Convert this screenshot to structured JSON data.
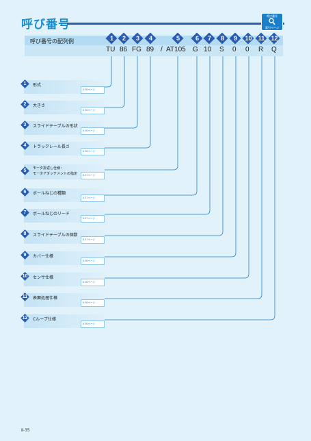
{
  "header": {
    "title": "呼び番号",
    "index_badge_top": "呼び番号",
    "index_badge_bottom": "索引ページ"
  },
  "config": {
    "label": "呼び番号の配列例",
    "numbers": [
      "1",
      "2",
      "3",
      "4",
      "5",
      "6",
      "7",
      "8",
      "9",
      "10",
      "11",
      "12"
    ],
    "codes": [
      "TU",
      "86",
      "FG",
      "89",
      "/",
      "AT105",
      "G",
      "10",
      "S",
      "0",
      "0",
      "R",
      "Q"
    ]
  },
  "items": [
    {
      "num": "1",
      "label": "形式",
      "ref": "Ⅱ-36ページ"
    },
    {
      "num": "2",
      "label": "大きさ",
      "ref": "Ⅱ-36ページ"
    },
    {
      "num": "3",
      "label": "スライドテーブルの形状",
      "ref": "Ⅱ-36ページ"
    },
    {
      "num": "4",
      "label": "トラックレール長さ",
      "ref": "Ⅱ-36ページ"
    },
    {
      "num": "5",
      "label": "モータ折返し仕様・",
      "label2": "モータアタッチメントの指定",
      "ref": "Ⅱ-37ページ"
    },
    {
      "num": "6",
      "label": "ボールねじの種類",
      "ref": "Ⅱ-37ページ"
    },
    {
      "num": "7",
      "label": "ボールねじのリード",
      "ref": "Ⅱ-37ページ"
    },
    {
      "num": "8",
      "label": "スライドテーブルの個数",
      "ref": "Ⅱ-37ページ"
    },
    {
      "num": "9",
      "label": "カバー仕様",
      "ref": "Ⅱ-38ページ"
    },
    {
      "num": "10",
      "label": "センサ仕様",
      "ref": "Ⅱ-38ページ"
    },
    {
      "num": "11",
      "label": "表面処理仕様",
      "ref": "Ⅱ-38ページ"
    },
    {
      "num": "12",
      "label": "Cループ仕様",
      "ref": "Ⅱ-38ページ"
    }
  ],
  "footer": {
    "page": "Ⅱ-35"
  },
  "colors": {
    "accent": "#1a8fd0",
    "badge": "#2a5db0",
    "background": "#e2f2fb",
    "line": "#1a7fc9"
  }
}
